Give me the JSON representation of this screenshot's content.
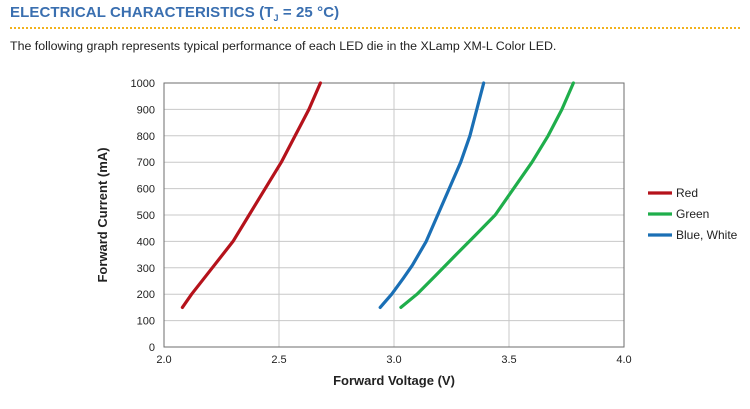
{
  "header": {
    "title_before": "ELECTRICAL CHARACTERISTICS (T",
    "title_sub": "J",
    "title_after": " = 25 °C)",
    "rule_color": "#f2b21c",
    "title_color": "#3a6fb0"
  },
  "intro_text": "The following graph represents typical performance of each LED die in the XLamp XM-L Color LED.",
  "chart_data": {
    "type": "line",
    "title": "",
    "xlabel": "Forward Voltage (V)",
    "ylabel": "Forward Current (mA)",
    "xlim": [
      2.0,
      4.0
    ],
    "ylim": [
      0,
      1000
    ],
    "xticks": [
      "2.0",
      "2.5",
      "3.0",
      "3.5",
      "4.0"
    ],
    "yticks": [
      "0",
      "100",
      "200",
      "300",
      "400",
      "500",
      "600",
      "700",
      "800",
      "900",
      "1000"
    ],
    "grid": true,
    "legend_position": "right",
    "series": [
      {
        "name": "Red",
        "color": "#b5121b",
        "x": [
          2.08,
          2.12,
          2.21,
          2.3,
          2.37,
          2.44,
          2.51,
          2.57,
          2.63,
          2.68
        ],
        "y": [
          150,
          200,
          300,
          400,
          500,
          600,
          700,
          800,
          900,
          1000
        ]
      },
      {
        "name": "Green",
        "color": "#1fae4b",
        "x": [
          3.03,
          3.1,
          3.18,
          3.27,
          3.35,
          3.44,
          3.52,
          3.6,
          3.67,
          3.73,
          3.78
        ],
        "y": [
          150,
          200,
          270,
          350,
          420,
          500,
          600,
          700,
          800,
          900,
          1000
        ]
      },
      {
        "name": "Blue, White",
        "color": "#1a6fb5",
        "x": [
          2.94,
          2.99,
          3.04,
          3.08,
          3.14,
          3.19,
          3.24,
          3.29,
          3.33,
          3.36,
          3.39
        ],
        "y": [
          150,
          200,
          260,
          310,
          400,
          500,
          600,
          700,
          800,
          900,
          1000
        ]
      }
    ]
  }
}
